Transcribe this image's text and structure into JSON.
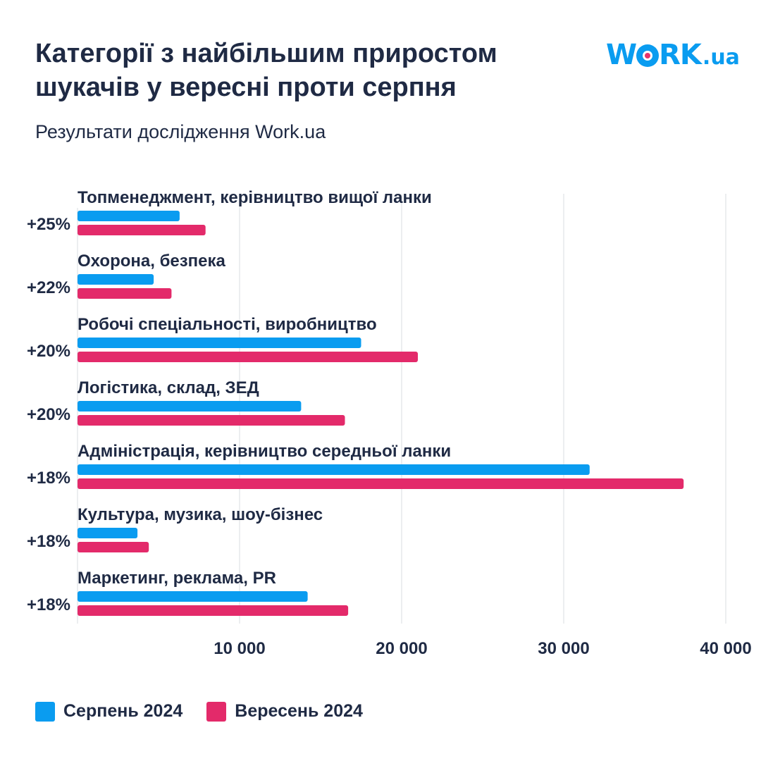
{
  "title": "Категорії з найбільшим приростом шукачів у вересні проти серпня",
  "subtitle": "Результати дослідження Work.ua",
  "logo": {
    "main": "WORK",
    "suffix": ".ua"
  },
  "colors": {
    "august": "#0a9cf0",
    "september": "#e32a6a",
    "grid": "#e6e8ec",
    "text": "#1f2a44"
  },
  "chart_data": {
    "type": "bar",
    "orientation": "horizontal",
    "categories": [
      "Топменеджмент, керівництво вищої ланки",
      "Охорона, безпека",
      "Робочі спеціальності, виробництво",
      "Логістика, склад, ЗЕД",
      "Адміністрація, керівництво середньої ланки",
      "Культура, музика, шоу-бізнес",
      "Маркетинг, реклама, PR"
    ],
    "growth_labels": [
      "+25%",
      "+22%",
      "+20%",
      "+20%",
      "+18%",
      "+18%",
      "+18%"
    ],
    "series": [
      {
        "name": "Серпень 2024",
        "values": [
          6300,
          4700,
          17500,
          13800,
          31600,
          3700,
          14200
        ]
      },
      {
        "name": "Вересень 2024",
        "values": [
          7900,
          5800,
          21000,
          16500,
          37400,
          4400,
          16700
        ]
      }
    ],
    "x_ticks": [
      10000,
      20000,
      30000,
      40000
    ],
    "x_tick_labels": [
      "10 000",
      "20 000",
      "30 000",
      "40 000"
    ],
    "xlim": [
      0,
      40000
    ],
    "grid": true,
    "legend_position": "bottom-left"
  }
}
